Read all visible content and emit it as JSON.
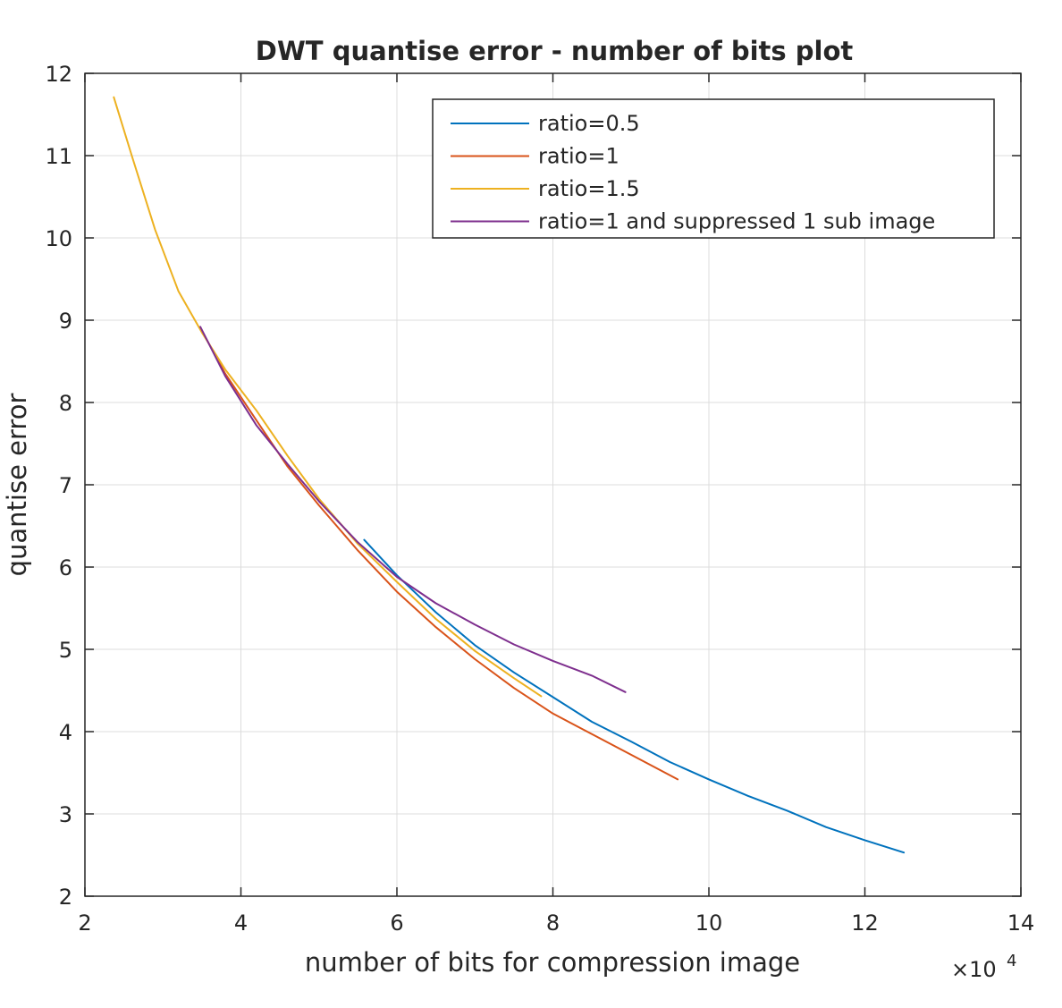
{
  "chart_data": {
    "type": "line",
    "title": "DWT quantise error - number of bits plot",
    "xlabel": "number of bits for compression image",
    "ylabel": "quantise error",
    "x_exponent_label": "×10",
    "x_exponent_power": "4",
    "xlim": [
      2,
      14
    ],
    "ylim": [
      2,
      12
    ],
    "x_scale": 10000,
    "xticks": [
      2,
      4,
      6,
      8,
      10,
      12,
      14
    ],
    "yticks": [
      2,
      3,
      4,
      5,
      6,
      7,
      8,
      9,
      10,
      11,
      12
    ],
    "grid": true,
    "legend_position": "top-right",
    "series": [
      {
        "name": "ratio=0.5",
        "color": "#0072BD",
        "points": [
          [
            5.58,
            6.33
          ],
          [
            6.0,
            5.9
          ],
          [
            6.5,
            5.45
          ],
          [
            7.0,
            5.05
          ],
          [
            7.5,
            4.72
          ],
          [
            8.0,
            4.42
          ],
          [
            8.5,
            4.12
          ],
          [
            9.0,
            3.88
          ],
          [
            9.5,
            3.63
          ],
          [
            10.0,
            3.42
          ],
          [
            10.5,
            3.22
          ],
          [
            11.0,
            3.04
          ],
          [
            11.5,
            2.84
          ],
          [
            12.0,
            2.68
          ],
          [
            12.5,
            2.53
          ]
        ]
      },
      {
        "name": "ratio=1",
        "color": "#D95319",
        "points": [
          [
            3.5,
            8.87
          ],
          [
            3.8,
            8.35
          ],
          [
            4.2,
            7.78
          ],
          [
            4.6,
            7.22
          ],
          [
            5.0,
            6.75
          ],
          [
            5.5,
            6.2
          ],
          [
            6.0,
            5.7
          ],
          [
            6.5,
            5.27
          ],
          [
            7.0,
            4.88
          ],
          [
            7.5,
            4.53
          ],
          [
            8.0,
            4.22
          ],
          [
            8.5,
            3.97
          ],
          [
            9.0,
            3.72
          ],
          [
            9.6,
            3.42
          ]
        ]
      },
      {
        "name": "ratio=1.5",
        "color": "#EDB120",
        "points": [
          [
            2.37,
            11.71
          ],
          [
            2.6,
            11.0
          ],
          [
            2.9,
            10.1
          ],
          [
            3.2,
            9.35
          ],
          [
            3.5,
            8.85
          ],
          [
            3.8,
            8.4
          ],
          [
            4.2,
            7.9
          ],
          [
            4.6,
            7.35
          ],
          [
            5.0,
            6.83
          ],
          [
            5.5,
            6.28
          ],
          [
            6.0,
            5.82
          ],
          [
            6.5,
            5.37
          ],
          [
            7.0,
            4.98
          ],
          [
            7.5,
            4.65
          ],
          [
            7.85,
            4.43
          ]
        ]
      },
      {
        "name": "ratio=1 and suppressed 1 sub image",
        "color": "#7E2F8E",
        "points": [
          [
            3.48,
            8.92
          ],
          [
            3.8,
            8.32
          ],
          [
            4.2,
            7.72
          ],
          [
            4.6,
            7.25
          ],
          [
            5.0,
            6.8
          ],
          [
            5.5,
            6.3
          ],
          [
            6.0,
            5.88
          ],
          [
            6.5,
            5.56
          ],
          [
            7.0,
            5.3
          ],
          [
            7.5,
            5.06
          ],
          [
            8.0,
            4.86
          ],
          [
            8.5,
            4.68
          ],
          [
            8.93,
            4.48
          ]
        ]
      }
    ]
  }
}
